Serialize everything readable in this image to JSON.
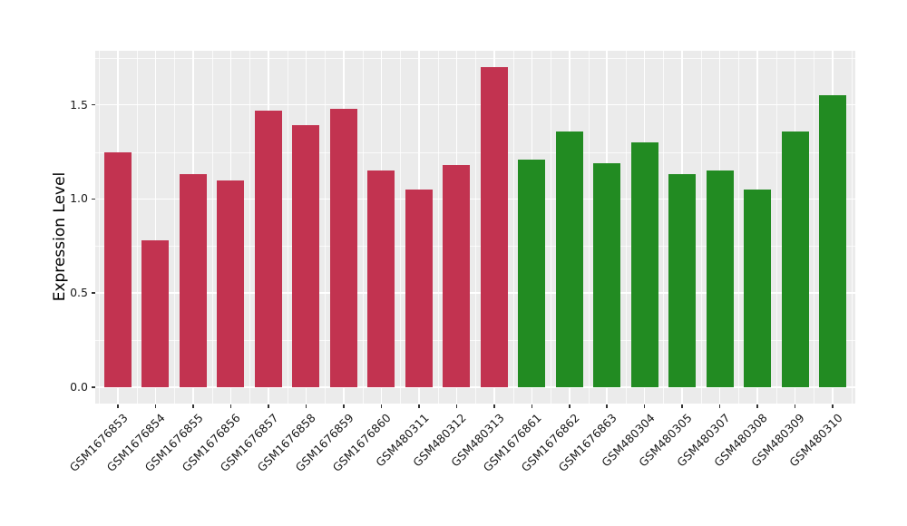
{
  "chart_data": {
    "type": "bar",
    "title": "",
    "xlabel": "",
    "ylabel": "Expression Level",
    "categories": [
      "GSM1676853",
      "GSM1676854",
      "GSM1676855",
      "GSM1676856",
      "GSM1676857",
      "GSM1676858",
      "GSM1676859",
      "GSM1676860",
      "GSM480311",
      "GSM480312",
      "GSM480313",
      "GSM1676861",
      "GSM1676862",
      "GSM1676863",
      "GSM480304",
      "GSM480305",
      "GSM480307",
      "GSM480308",
      "GSM480309",
      "GSM480310"
    ],
    "values": [
      1.25,
      0.78,
      1.13,
      1.1,
      1.47,
      1.39,
      1.48,
      1.15,
      1.05,
      1.18,
      1.7,
      1.21,
      1.36,
      1.19,
      1.3,
      1.13,
      1.15,
      1.05,
      1.36,
      1.55
    ],
    "groups": [
      "group1",
      "group1",
      "group1",
      "group1",
      "group1",
      "group1",
      "group1",
      "group1",
      "group1",
      "group1",
      "group1",
      "group2",
      "group2",
      "group2",
      "group2",
      "group2",
      "group2",
      "group2",
      "group2",
      "group2"
    ],
    "group_colors": {
      "group1": "#C23350",
      "group2": "#228B22"
    },
    "yticks": [
      0.0,
      0.5,
      1.0,
      1.5
    ],
    "ytick_labels": [
      "0.0",
      "0.5",
      "1.0",
      "1.5"
    ],
    "minor_yticks": [
      0.25,
      0.75,
      1.25,
      1.75
    ],
    "ylim": [
      -0.087,
      1.787
    ],
    "bar_width_fraction": 0.72,
    "grid": true,
    "legend_position": "none",
    "panel_background": "#EBEBEB",
    "grid_color": "#FFFFFF",
    "tick_color": "#333333",
    "text_color": "#1a1a1a"
  }
}
